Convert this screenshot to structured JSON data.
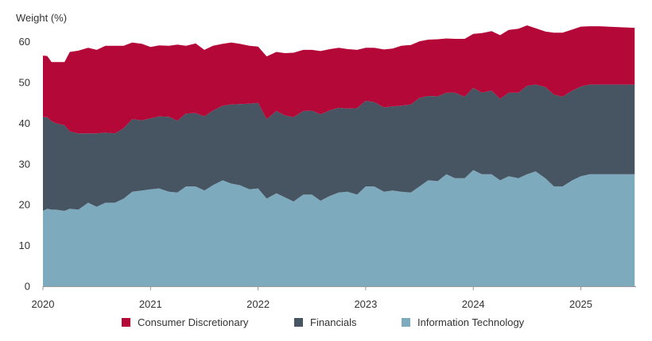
{
  "chart_data": {
    "type": "area",
    "stacked": true,
    "ylabel": "Weight (%)",
    "xlabel": "",
    "ylim": [
      0,
      65
    ],
    "xlim": [
      2020,
      2025.5
    ],
    "yticks": [
      "0",
      "10",
      "20",
      "30",
      "40",
      "50",
      "60"
    ],
    "xticks": [
      "2020",
      "2021",
      "2022",
      "2023",
      "2024",
      "2025"
    ],
    "grid": false,
    "legend_position": "bottom",
    "series": [
      {
        "name": "Information Technology",
        "color": "#7eaabe",
        "x": [
          2020.0,
          2020.04,
          2020.08,
          2020.12,
          2020.2,
          2020.25,
          2020.33,
          2020.42,
          2020.5,
          2020.58,
          2020.67,
          2020.75,
          2020.83,
          2020.92,
          2021.0,
          2021.08,
          2021.17,
          2021.25,
          2021.33,
          2021.42,
          2021.5,
          2021.58,
          2021.67,
          2021.75,
          2021.83,
          2021.92,
          2022.0,
          2022.08,
          2022.17,
          2022.25,
          2022.33,
          2022.42,
          2022.5,
          2022.58,
          2022.67,
          2022.75,
          2022.83,
          2022.92,
          2023.0,
          2023.08,
          2023.17,
          2023.25,
          2023.33,
          2023.42,
          2023.5,
          2023.58,
          2023.67,
          2023.75,
          2023.83,
          2023.92,
          2024.0,
          2024.08,
          2024.17,
          2024.25,
          2024.33,
          2024.42,
          2024.5,
          2024.58,
          2024.67,
          2024.75,
          2024.83,
          2024.92,
          2025.0,
          2025.08,
          2025.17,
          2025.25,
          2025.33,
          2025.42,
          2025.5
        ],
        "values": [
          18.5,
          19.0,
          18.8,
          18.8,
          18.5,
          19.0,
          18.8,
          20.5,
          19.5,
          20.5,
          20.5,
          21.5,
          23.2,
          23.5,
          23.8,
          24.0,
          23.2,
          23.0,
          24.5,
          24.5,
          23.5,
          24.8,
          26.0,
          25.2,
          24.8,
          23.8,
          24.0,
          21.5,
          22.8,
          21.8,
          20.8,
          22.5,
          22.5,
          21.0,
          22.2,
          23.0,
          23.2,
          22.5,
          24.5,
          24.5,
          23.2,
          23.5,
          23.2,
          23.0,
          24.5,
          26.0,
          25.8,
          27.5,
          26.5,
          26.5,
          28.5,
          27.5,
          27.5,
          26.0,
          27.0,
          26.5,
          27.5,
          28.2,
          26.5,
          24.5,
          24.5,
          26.0,
          27.0,
          27.5,
          27.5,
          27.5,
          27.5,
          27.5,
          27.5
        ]
      },
      {
        "name": "Financials",
        "color": "#475562",
        "x": [
          2020.0,
          2020.04,
          2020.08,
          2020.12,
          2020.2,
          2020.25,
          2020.33,
          2020.42,
          2020.5,
          2020.58,
          2020.67,
          2020.75,
          2020.83,
          2020.92,
          2021.0,
          2021.08,
          2021.17,
          2021.25,
          2021.33,
          2021.42,
          2021.5,
          2021.58,
          2021.67,
          2021.75,
          2021.83,
          2021.92,
          2022.0,
          2022.08,
          2022.17,
          2022.25,
          2022.33,
          2022.42,
          2022.5,
          2022.58,
          2022.67,
          2022.75,
          2022.83,
          2022.92,
          2023.0,
          2023.08,
          2023.17,
          2023.25,
          2023.33,
          2023.42,
          2023.5,
          2023.58,
          2023.67,
          2023.75,
          2023.83,
          2023.92,
          2024.0,
          2024.08,
          2024.17,
          2024.25,
          2024.33,
          2024.42,
          2024.5,
          2024.58,
          2024.67,
          2024.75,
          2024.83,
          2024.92,
          2025.0,
          2025.08,
          2025.17,
          2025.25,
          2025.33,
          2025.42,
          2025.5
        ],
        "values": [
          23.0,
          22.5,
          21.7,
          21.2,
          21.0,
          19.0,
          18.7,
          17.0,
          18.0,
          17.2,
          17.0,
          17.3,
          17.8,
          17.2,
          17.4,
          17.7,
          18.4,
          17.6,
          17.9,
          18.0,
          18.2,
          18.3,
          18.3,
          19.4,
          19.9,
          21.0,
          21.0,
          19.5,
          20.2,
          20.1,
          20.7,
          20.5,
          20.6,
          21.2,
          21.0,
          20.8,
          20.4,
          21.2,
          21.0,
          20.7,
          20.7,
          20.6,
          21.1,
          21.6,
          21.7,
          20.7,
          20.8,
          20.0,
          21.0,
          20.0,
          20.2,
          20.0,
          20.5,
          20.0,
          20.5,
          21.0,
          21.7,
          21.3,
          22.4,
          22.5,
          22.0,
          22.0,
          22.0,
          22.0,
          22.0,
          22.0,
          22.0,
          22.0,
          22.0
        ]
      },
      {
        "name": "Consumer Discretionary",
        "color": "#b30838",
        "x": [
          2020.0,
          2020.04,
          2020.08,
          2020.12,
          2020.2,
          2020.25,
          2020.33,
          2020.42,
          2020.5,
          2020.58,
          2020.67,
          2020.75,
          2020.83,
          2020.92,
          2021.0,
          2021.08,
          2021.17,
          2021.25,
          2021.33,
          2021.42,
          2021.5,
          2021.58,
          2021.67,
          2021.75,
          2021.83,
          2021.92,
          2022.0,
          2022.08,
          2022.17,
          2022.25,
          2022.33,
          2022.42,
          2022.5,
          2022.58,
          2022.67,
          2022.75,
          2022.83,
          2022.92,
          2023.0,
          2023.08,
          2023.17,
          2023.25,
          2023.33,
          2023.42,
          2023.5,
          2023.58,
          2023.67,
          2023.75,
          2023.83,
          2023.92,
          2024.0,
          2024.08,
          2024.17,
          2024.25,
          2024.33,
          2024.42,
          2024.5,
          2024.58,
          2024.67,
          2024.75,
          2024.83,
          2024.92,
          2025.0,
          2025.08,
          2025.17,
          2025.25,
          2025.33,
          2025.42,
          2025.5
        ],
        "values": [
          15.1,
          15.0,
          14.5,
          15.0,
          15.5,
          19.5,
          20.3,
          21.0,
          20.5,
          21.3,
          21.5,
          20.2,
          18.8,
          18.8,
          17.5,
          17.4,
          17.4,
          18.7,
          16.6,
          17.1,
          16.3,
          15.9,
          15.2,
          15.2,
          14.8,
          14.2,
          13.8,
          15.4,
          14.5,
          15.3,
          15.8,
          15.0,
          14.9,
          15.5,
          15.0,
          14.7,
          14.6,
          14.3,
          13.0,
          13.3,
          14.2,
          14.2,
          14.7,
          14.6,
          13.9,
          13.8,
          14.0,
          13.3,
          13.2,
          14.2,
          13.2,
          14.6,
          14.6,
          15.6,
          15.4,
          15.7,
          14.8,
          13.8,
          13.6,
          15.2,
          15.7,
          15.0,
          14.7,
          14.3,
          14.3,
          14.2,
          14.1,
          14.0,
          13.9
        ]
      }
    ]
  }
}
